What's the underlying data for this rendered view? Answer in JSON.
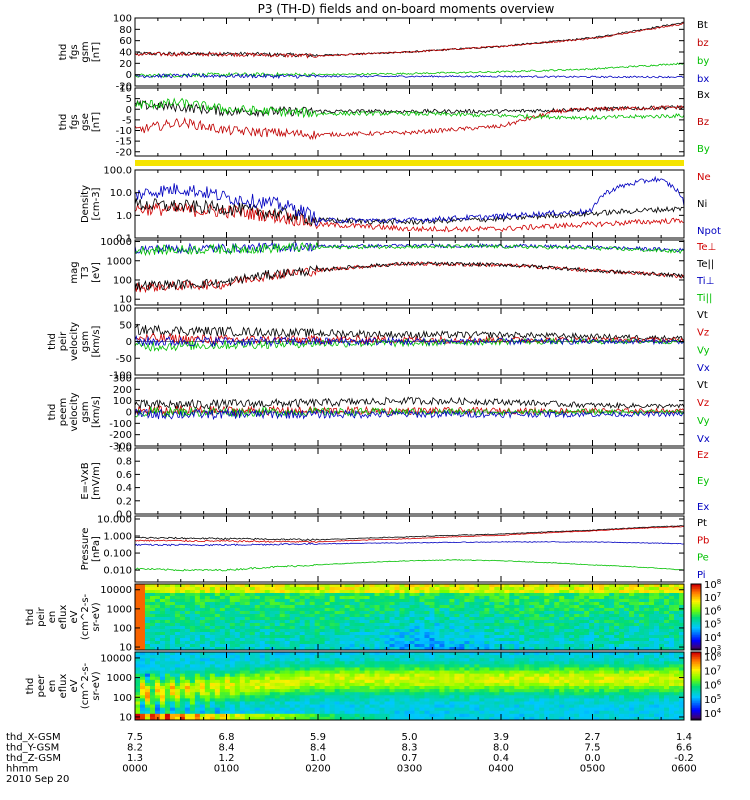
{
  "chart_data": {
    "type": "line",
    "title": "P3 (TH-D) fields and on-board moments overview",
    "time_ticks": [
      "0000",
      "0100",
      "0200",
      "0300",
      "0400",
      "0500",
      "0600"
    ],
    "x_hours": [
      0,
      1,
      2,
      3,
      4,
      5,
      6
    ],
    "ephemeris": {
      "rows": [
        {
          "label": "thd_X-GSM",
          "values": [
            "7.5",
            "6.8",
            "5.9",
            "5.0",
            "3.9",
            "2.7",
            "1.4"
          ]
        },
        {
          "label": "thd_Y-GSM",
          "values": [
            "8.2",
            "8.4",
            "8.4",
            "8.3",
            "8.0",
            "7.5",
            "6.6"
          ]
        },
        {
          "label": "thd_Z-GSM",
          "values": [
            "1.3",
            "1.2",
            "1.0",
            "0.7",
            "0.4",
            "0.0",
            "-0.2"
          ]
        },
        {
          "label": "hhmm",
          "values": [
            "0000",
            "0100",
            "0200",
            "0300",
            "0400",
            "0500",
            "0600"
          ]
        }
      ],
      "date": "2010 Sep 20"
    },
    "panels": [
      {
        "id": "fgs-gsm",
        "ylabel": [
          "thd",
          "fgs",
          "gsm",
          "[nT]"
        ],
        "yscale": "linear",
        "ylim": [
          -20,
          100
        ],
        "yticks": [
          "100",
          "80",
          "60",
          "40",
          "20",
          "0",
          "-20"
        ],
        "ytick_values": [
          100,
          80,
          60,
          40,
          20,
          0,
          -20
        ],
        "series": [
          {
            "name": "Bt",
            "color": "#000000",
            "x": [
              0,
              1,
              2,
              3,
              4,
              5,
              6
            ],
            "y": [
              37,
              37,
              34,
              40,
              50,
              65,
              92
            ]
          },
          {
            "name": "bz",
            "color": "#c00000",
            "x": [
              0,
              1,
              2,
              3,
              4,
              5,
              6
            ],
            "y": [
              36,
              36,
              33,
              40,
              50,
              64,
              90
            ]
          },
          {
            "name": "by",
            "color": "#00c000",
            "x": [
              0,
              1,
              2,
              3,
              4,
              5,
              6
            ],
            "y": [
              -2,
              0,
              0,
              2,
              5,
              10,
              20
            ]
          },
          {
            "name": "bx",
            "color": "#0000c0",
            "x": [
              0,
              1,
              2,
              3,
              4,
              5,
              6
            ],
            "y": [
              -2,
              -2,
              -3,
              -3,
              -3,
              -4,
              -4
            ]
          }
        ],
        "noise": 2.5,
        "legend": [
          "Bt",
          "bz",
          "by",
          "bx"
        ]
      },
      {
        "id": "fgs-gse-detrend",
        "ylabel": [
          "thd",
          "fgs",
          "gse",
          "[nT]"
        ],
        "yscale": "linear",
        "ylim": [
          -22,
          10
        ],
        "yticks": [
          "10",
          "5",
          "0",
          "-5",
          "-10",
          "-15",
          "-20"
        ],
        "ytick_values": [
          10,
          5,
          0,
          -5,
          -10,
          -15,
          -20
        ],
        "series": [
          {
            "name": "Bx",
            "color": "#000000",
            "x": [
              0,
              0.5,
              1,
              2,
              3,
              4,
              5,
              6
            ],
            "y": [
              2,
              1,
              -1,
              -1,
              -1,
              -1,
              0,
              1
            ]
          },
          {
            "name": "Bz",
            "color": "#c00000",
            "x": [
              0,
              0.5,
              1,
              2,
              3,
              4,
              4.6,
              5,
              6
            ],
            "y": [
              -10,
              -6,
              -10,
              -12,
              -11,
              -8,
              -1,
              0,
              1
            ]
          },
          {
            "name": "By",
            "color": "#00c000",
            "x": [
              0,
              0.5,
              1,
              2,
              3,
              4,
              5,
              6
            ],
            "y": [
              2,
              3,
              0,
              -2,
              -2,
              -3,
              -4,
              -3
            ]
          }
        ],
        "noise": 1.6,
        "legend": [
          "Bx",
          "Bz",
          "By"
        ]
      },
      {
        "id": "density",
        "ylabel": [
          "Density",
          "[cm-3]"
        ],
        "yscale": "log",
        "ylim": [
          0.1,
          100
        ],
        "yticks": [
          "100.0",
          "10.0",
          "1.0",
          "0.1"
        ],
        "ytick_values": [
          100,
          10,
          1,
          0.1
        ],
        "series": [
          {
            "name": "Ne",
            "color": "#d00000",
            "x": [
              0,
              1,
              2,
              3,
              4,
              5,
              6
            ],
            "y": [
              2,
              1.5,
              0.4,
              0.25,
              0.25,
              0.4,
              0.6
            ]
          },
          {
            "name": "Ni",
            "color": "#000000",
            "x": [
              0,
              1,
              2,
              3,
              4,
              5,
              6
            ],
            "y": [
              3,
              2,
              0.6,
              0.5,
              0.7,
              1.2,
              2
            ]
          },
          {
            "name": "Npot",
            "color": "#0000c0",
            "x": [
              0,
              0.5,
              1,
              2,
              3,
              4,
              5,
              5.7,
              6
            ],
            "y": [
              8,
              15,
              6,
              0.6,
              0.6,
              0.9,
              1.5,
              40,
              3
            ]
          }
        ],
        "noise": 0.3,
        "legend": [
          "Ne",
          "Ni",
          "Npot"
        ]
      },
      {
        "id": "temperature",
        "ylabel": [
          "mag",
          "T3",
          "[eV]"
        ],
        "yscale": "log",
        "ylim": [
          5,
          12000
        ],
        "yticks": [
          "10000",
          "1000",
          "100",
          "10"
        ],
        "ytick_values": [
          10000,
          1000,
          100,
          10
        ],
        "series": [
          {
            "name": "Te⊥",
            "color": "#d00000",
            "x": [
              0,
              1,
              2,
              3,
              4,
              5,
              6
            ],
            "y": [
              40,
              60,
              300,
              700,
              600,
              300,
              150
            ]
          },
          {
            "name": "Te||",
            "color": "#000000",
            "x": [
              0,
              1,
              2,
              3,
              4,
              5,
              6
            ],
            "y": [
              50,
              70,
              320,
              720,
              620,
              300,
              160
            ]
          },
          {
            "name": "Ti⊥",
            "color": "#0000c0",
            "x": [
              0,
              1,
              2,
              3,
              4,
              5,
              6
            ],
            "y": [
              4000,
              4500,
              5500,
              6000,
              6000,
              5000,
              3500
            ]
          },
          {
            "name": "Ti||",
            "color": "#00c000",
            "x": [
              0,
              1,
              2,
              3,
              4,
              5,
              6
            ],
            "y": [
              3500,
              4000,
              5000,
              5500,
              5500,
              4500,
              3000
            ]
          }
        ],
        "noise": 0.25,
        "legend": [
          "Te⊥",
          "Te||",
          "Ti⊥",
          "Ti||"
        ]
      },
      {
        "id": "peir-velocity",
        "ylabel": [
          "thd",
          "peir",
          "velocity",
          "gsm",
          "[km/s]"
        ],
        "yscale": "linear",
        "ylim": [
          -100,
          100
        ],
        "yticks": [
          "100",
          "50",
          "0",
          "-50",
          "-100"
        ],
        "ytick_values": [
          100,
          50,
          0,
          -50,
          -100
        ],
        "series": [
          {
            "name": "Vt",
            "color": "#000000",
            "x": [
              0,
              1,
              2,
              3,
              4,
              5,
              6
            ],
            "y": [
              35,
              30,
              25,
              20,
              20,
              15,
              10
            ]
          },
          {
            "name": "Vz",
            "color": "#d00000",
            "x": [
              0,
              1,
              2,
              3,
              4,
              5,
              6
            ],
            "y": [
              10,
              5,
              5,
              5,
              5,
              5,
              5
            ]
          },
          {
            "name": "Vy",
            "color": "#00c000",
            "x": [
              0,
              1,
              2,
              3,
              4,
              5,
              6
            ],
            "y": [
              -15,
              -10,
              -5,
              -5,
              0,
              0,
              0
            ]
          },
          {
            "name": "Vx",
            "color": "#0000c0",
            "x": [
              0,
              1,
              2,
              3,
              4,
              5,
              6
            ],
            "y": [
              0,
              0,
              0,
              0,
              0,
              0,
              0
            ]
          }
        ],
        "noise": 12,
        "legend": [
          "Vt",
          "Vz",
          "Vy",
          "Vx"
        ]
      },
      {
        "id": "peem-velocity",
        "ylabel": [
          "thd",
          "peem",
          "velocity",
          "gsm",
          "[km/s]"
        ],
        "yscale": "linear",
        "ylim": [
          -300,
          300
        ],
        "yticks": [
          "300",
          "200",
          "100",
          "0",
          "-100",
          "-200",
          "-300"
        ],
        "ytick_values": [
          300,
          200,
          100,
          0,
          -100,
          -200,
          -300
        ],
        "series": [
          {
            "name": "Vt",
            "color": "#000000",
            "x": [
              0,
              1,
              2,
              3,
              4,
              5,
              6
            ],
            "y": [
              60,
              70,
              80,
              100,
              90,
              60,
              50
            ]
          },
          {
            "name": "Vz",
            "color": "#d00000",
            "x": [
              0,
              1,
              2,
              3,
              4,
              5,
              6
            ],
            "y": [
              10,
              10,
              10,
              10,
              10,
              10,
              10
            ]
          },
          {
            "name": "Vy",
            "color": "#00c000",
            "x": [
              0,
              1,
              2,
              3,
              4,
              5,
              6
            ],
            "y": [
              0,
              0,
              0,
              0,
              0,
              0,
              0
            ]
          },
          {
            "name": "Vx",
            "color": "#0000c0",
            "x": [
              0,
              1,
              2,
              3,
              4,
              5,
              6
            ],
            "y": [
              -20,
              -20,
              -20,
              -20,
              -20,
              -20,
              -20
            ]
          }
        ],
        "noise": 35,
        "legend": [
          "Vt",
          "Vz",
          "Vy",
          "Vx"
        ]
      },
      {
        "id": "efield",
        "ylabel": [
          "E=-VxB",
          "[mV/m]"
        ],
        "yscale": "linear",
        "ylim": [
          0,
          1
        ],
        "yticks": [
          "1.0",
          "0.8",
          "0.6",
          "0.4",
          "0.2",
          "0.0"
        ],
        "ytick_values": [
          1,
          0.8,
          0.6,
          0.4,
          0.2,
          0
        ],
        "series": [],
        "noise": 0,
        "legend": [
          "Ez",
          "Ey",
          "Ex"
        ],
        "legend_colors": [
          "#d00000",
          "#00c000",
          "#0000c0"
        ]
      },
      {
        "id": "pressure",
        "ylabel": [
          "Pressure",
          "[nPa]"
        ],
        "yscale": "log",
        "ylim": [
          0.002,
          15
        ],
        "yticks": [
          "10.000",
          "1.000",
          "0.100",
          "0.010"
        ],
        "ytick_values": [
          10,
          1,
          0.1,
          0.01
        ],
        "series": [
          {
            "name": "Pt",
            "color": "#000000",
            "x": [
              0,
              1,
              2,
              3,
              4,
              5,
              6
            ],
            "y": [
              0.8,
              0.7,
              0.6,
              0.9,
              1.3,
              2.2,
              4
            ]
          },
          {
            "name": "Pb",
            "color": "#d00000",
            "x": [
              0,
              1,
              2,
              3,
              4,
              5,
              6
            ],
            "y": [
              0.55,
              0.5,
              0.45,
              0.7,
              1.1,
              2.0,
              3.6
            ]
          },
          {
            "name": "Pe",
            "color": "#00c000",
            "x": [
              0,
              0.5,
              1,
              2,
              3,
              3.5,
              4,
              5,
              6
            ],
            "y": [
              0.012,
              0.01,
              0.01,
              0.02,
              0.035,
              0.04,
              0.035,
              0.02,
              0.01
            ]
          },
          {
            "name": "Pi",
            "color": "#0000c0",
            "x": [
              0,
              1,
              2,
              3,
              4,
              5,
              6
            ],
            "y": [
              0.3,
              0.3,
              0.35,
              0.4,
              0.45,
              0.45,
              0.35
            ]
          }
        ],
        "noise": 0.05,
        "legend": [
          "Pt",
          "Pb",
          "Pe",
          "Pi"
        ]
      },
      {
        "id": "peir-eflux",
        "type": "spectrogram",
        "ylabel": [
          "thd",
          "peir",
          "en",
          "eflux",
          "eV",
          "(cm^2-s-",
          "sr-eV)"
        ],
        "yscale": "log",
        "ylim": [
          7,
          20000
        ],
        "yticks": [
          "10000",
          "1000",
          "100",
          "10"
        ],
        "ytick_values": [
          10000,
          1000,
          100,
          10
        ],
        "colorbar": {
          "ticks": [
            "8",
            "7",
            "6",
            "5",
            "4",
            "3"
          ],
          "tick_base": "10",
          "range": [
            3,
            8
          ]
        }
      },
      {
        "id": "peer-eflux",
        "type": "spectrogram",
        "ylabel": [
          "thd",
          "peer",
          "en",
          "eflux",
          "eV",
          "(cm^2-s-",
          "sr-eV)"
        ],
        "yscale": "log",
        "ylim": [
          7,
          20000
        ],
        "yticks": [
          "10000",
          "1000",
          "100",
          "10"
        ],
        "ytick_values": [
          10000,
          1000,
          100,
          10
        ],
        "colorbar": {
          "ticks": [
            "8",
            "7",
            "6",
            "5",
            "4"
          ],
          "tick_base": "10",
          "range": [
            3.5,
            8.3
          ]
        }
      }
    ]
  }
}
